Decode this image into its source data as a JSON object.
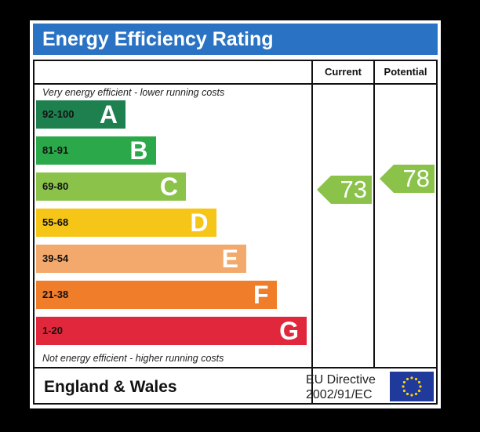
{
  "title": "Energy Efficiency Rating",
  "columns": {
    "current": "Current",
    "potential": "Potential"
  },
  "notes": {
    "top": "Very energy efficient - lower running costs",
    "bottom": "Not energy efficient - higher running costs"
  },
  "footer": {
    "region": "England & Wales",
    "directive_line1": "EU Directive",
    "directive_line2": "2002/91/EC",
    "flag_icon": "eu-flag-icon"
  },
  "chart_data": {
    "type": "bar",
    "categories": [
      "A",
      "B",
      "C",
      "D",
      "E",
      "F",
      "G"
    ],
    "ranges": [
      "92-100",
      "81-91",
      "69-80",
      "55-68",
      "39-54",
      "21-38",
      "1-20"
    ],
    "colors": [
      "#1e7f4f",
      "#2aa84a",
      "#8bc34a",
      "#f5c518",
      "#f2a96b",
      "#ef7d2a",
      "#e0273b"
    ],
    "current": 73,
    "potential": 78,
    "current_color": "#8bc34a",
    "potential_color": "#8bc34a"
  }
}
